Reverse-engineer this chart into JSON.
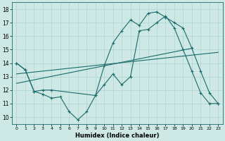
{
  "xlabel": "Humidex (Indice chaleur)",
  "bg_color": "#cde8e5",
  "line_color": "#1a6b6b",
  "grid_color": "#afd4d0",
  "xlim": [
    -0.5,
    23.5
  ],
  "ylim": [
    9.5,
    18.5
  ],
  "yticks": [
    10,
    11,
    12,
    13,
    14,
    15,
    16,
    17,
    18
  ],
  "xticks": [
    0,
    1,
    2,
    3,
    4,
    5,
    6,
    7,
    8,
    9,
    10,
    11,
    12,
    13,
    14,
    15,
    16,
    17,
    18,
    19,
    20,
    21,
    22,
    23
  ],
  "line1_x": [
    0,
    1,
    2,
    3,
    4,
    5,
    6,
    7,
    8,
    9,
    10,
    11,
    12,
    13,
    14,
    15,
    16,
    17,
    18,
    19,
    20,
    21,
    22,
    23
  ],
  "line1_y": [
    14.0,
    13.5,
    11.9,
    11.7,
    11.4,
    11.5,
    10.4,
    9.8,
    10.4,
    11.6,
    12.4,
    13.2,
    12.4,
    13.0,
    16.4,
    16.5,
    17.0,
    17.5,
    16.6,
    15.0,
    13.4,
    11.8,
    11.0,
    11.0
  ],
  "line2_x": [
    0,
    1,
    2,
    3,
    4,
    9,
    10,
    11,
    12,
    13,
    14,
    15,
    16,
    17,
    18,
    19,
    20,
    21,
    22,
    23
  ],
  "line2_y": [
    14.0,
    13.5,
    11.9,
    12.0,
    12.0,
    11.6,
    13.8,
    15.5,
    16.4,
    17.2,
    16.8,
    17.7,
    17.8,
    17.4,
    17.0,
    16.6,
    15.1,
    13.4,
    11.8,
    11.0
  ],
  "line3_x": [
    0,
    23
  ],
  "line3_y": [
    13.2,
    14.8
  ],
  "line4_x": [
    0,
    20
  ],
  "line4_y": [
    12.5,
    15.1
  ]
}
